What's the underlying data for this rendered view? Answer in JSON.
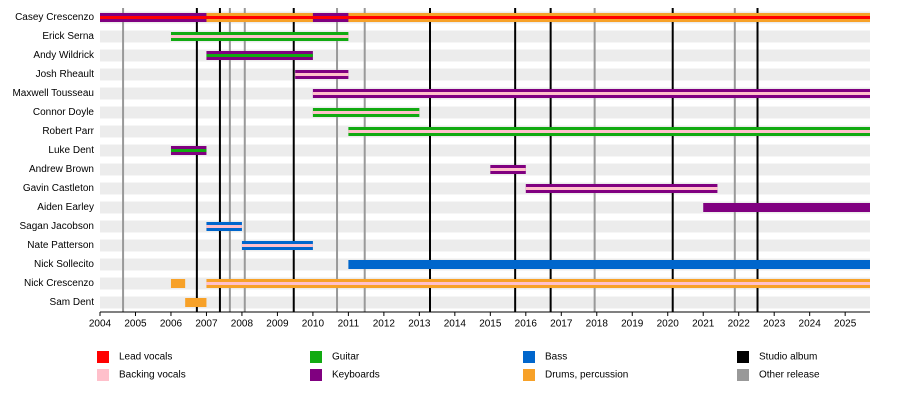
{
  "chart_data": {
    "type": "timeline",
    "xlim": [
      2004,
      2025.7
    ],
    "xticks": [
      2004,
      2005,
      2006,
      2007,
      2008,
      2009,
      2010,
      2011,
      2012,
      2013,
      2014,
      2015,
      2016,
      2017,
      2018,
      2019,
      2020,
      2021,
      2022,
      2023,
      2024,
      2025
    ],
    "roles": [
      {
        "name": "Lead vocals",
        "color": "#ff0000"
      },
      {
        "name": "Backing vocals",
        "color": "#ffc0cb"
      },
      {
        "name": "Guitar",
        "color": "#11aa11"
      },
      {
        "name": "Keyboards",
        "color": "#800080"
      },
      {
        "name": "Bass",
        "color": "#0066cc"
      },
      {
        "name": "Drums, percussion",
        "color": "#f7a128"
      }
    ],
    "releases": [
      {
        "name": "Studio album",
        "color": "#000000",
        "x": [
          2006.73,
          2007.38,
          2009.46,
          2013.3,
          2015.7,
          2016.7,
          2020.14,
          2022.53
        ]
      },
      {
        "name": "Other release",
        "color": "#999999",
        "x": [
          2004.65,
          2007.66,
          2008.08,
          2010.68,
          2011.46,
          2017.94,
          2021.89
        ]
      }
    ],
    "members": [
      {
        "name": "Casey Crescenzo",
        "spans": [
          {
            "start": 2004,
            "end": 2025.7,
            "roles": [
              "Drums, percussion",
              "Lead vocals"
            ]
          },
          {
            "start": 2004,
            "end": 2007,
            "roles": [
              "Keyboards",
              "Lead vocals"
            ]
          },
          {
            "start": 2010,
            "end": 2011,
            "roles": [
              "Keyboards",
              "Lead vocals"
            ]
          }
        ]
      },
      {
        "name": "Erick Serna",
        "spans": [
          {
            "start": 2006,
            "end": 2011,
            "roles": [
              "Guitar",
              "Backing vocals"
            ]
          }
        ]
      },
      {
        "name": "Andy Wildrick",
        "spans": [
          {
            "start": 2007,
            "end": 2010,
            "roles": [
              "Keyboards",
              "Guitar"
            ]
          }
        ]
      },
      {
        "name": "Josh Rheault",
        "spans": [
          {
            "start": 2009.5,
            "end": 2011,
            "roles": [
              "Keyboards",
              "Backing vocals"
            ]
          }
        ]
      },
      {
        "name": "Maxwell Tousseau",
        "spans": [
          {
            "start": 2010,
            "end": 2025.7,
            "roles": [
              "Keyboards",
              "Backing vocals"
            ]
          }
        ]
      },
      {
        "name": "Connor Doyle",
        "spans": [
          {
            "start": 2010,
            "end": 2013,
            "roles": [
              "Guitar",
              "Backing vocals"
            ]
          }
        ]
      },
      {
        "name": "Robert Parr",
        "spans": [
          {
            "start": 2011,
            "end": 2025.7,
            "roles": [
              "Guitar",
              "Backing vocals"
            ]
          }
        ]
      },
      {
        "name": "Luke Dent",
        "spans": [
          {
            "start": 2006,
            "end": 2007,
            "roles": [
              "Keyboards",
              "Guitar"
            ]
          }
        ]
      },
      {
        "name": "Andrew Brown",
        "spans": [
          {
            "start": 2015,
            "end": 2016,
            "roles": [
              "Keyboards",
              "Backing vocals"
            ]
          }
        ]
      },
      {
        "name": "Gavin Castleton",
        "spans": [
          {
            "start": 2016,
            "end": 2021.4,
            "roles": [
              "Keyboards",
              "Backing vocals"
            ]
          }
        ]
      },
      {
        "name": "Aiden Earley",
        "spans": [
          {
            "start": 2021,
            "end": 2025.7,
            "roles": [
              "Keyboards"
            ]
          }
        ]
      },
      {
        "name": "Sagan Jacobson",
        "spans": [
          {
            "start": 2007,
            "end": 2008,
            "roles": [
              "Bass",
              "Backing vocals"
            ]
          }
        ]
      },
      {
        "name": "Nate Patterson",
        "spans": [
          {
            "start": 2008,
            "end": 2010,
            "roles": [
              "Bass",
              "Backing vocals"
            ]
          }
        ]
      },
      {
        "name": "Nick Sollecito",
        "spans": [
          {
            "start": 2011,
            "end": 2025.7,
            "roles": [
              "Bass"
            ]
          }
        ]
      },
      {
        "name": "Nick Crescenzo",
        "spans": [
          {
            "start": 2006,
            "end": 2006.4,
            "roles": [
              "Drums, percussion"
            ]
          },
          {
            "start": 2007,
            "end": 2025.7,
            "roles": [
              "Drums, percussion",
              "Backing vocals"
            ]
          }
        ]
      },
      {
        "name": "Sam Dent",
        "spans": [
          {
            "start": 2006.4,
            "end": 2007,
            "roles": [
              "Drums, percussion"
            ]
          }
        ]
      }
    ]
  }
}
